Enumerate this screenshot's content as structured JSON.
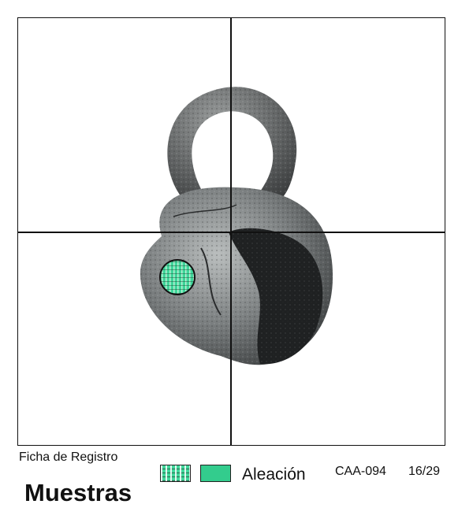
{
  "record": {
    "caption": "Ficha de Registro",
    "title": "Muestras",
    "code": "CAA-094",
    "page": "16/29"
  },
  "legend": {
    "label": "Aleación",
    "pattern_color": "#3fd69a",
    "solid_color": "#33cc8d"
  },
  "image": {
    "subject": "corroded metal bell with loop",
    "sample_marker": "sample-circle"
  }
}
